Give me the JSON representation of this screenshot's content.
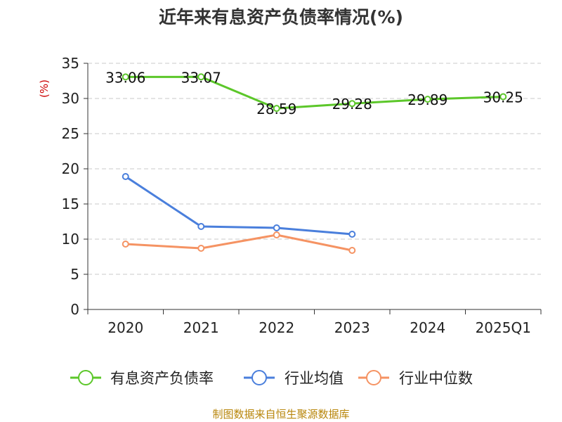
{
  "chart_data": {
    "type": "line",
    "title": "近年来有息资产负债率情况(%)",
    "ylabel": "(%)",
    "xlabel": "",
    "categories": [
      "2020",
      "2021",
      "2022",
      "2023",
      "2024",
      "2025Q1"
    ],
    "ylim": [
      0,
      35
    ],
    "yticks": [
      0,
      5,
      10,
      15,
      20,
      25,
      30,
      35
    ],
    "grid": true,
    "legend_position": "bottom",
    "series": [
      {
        "name": "有息资产负债率",
        "color": "#5cc72a",
        "values": [
          33.06,
          33.07,
          28.59,
          29.28,
          29.89,
          30.25
        ],
        "labels": [
          "33.06",
          "33.07",
          "28.59",
          "29.28",
          "29.89",
          "30.25"
        ]
      },
      {
        "name": "行业均值",
        "color": "#4a7fdc",
        "values": [
          18.9,
          11.8,
          11.6,
          10.7,
          null,
          null
        ]
      },
      {
        "name": "行业中位数",
        "color": "#f59363",
        "values": [
          9.3,
          8.7,
          10.6,
          8.4,
          null,
          null
        ]
      }
    ]
  },
  "source": "制图数据来自恒生聚源数据库"
}
